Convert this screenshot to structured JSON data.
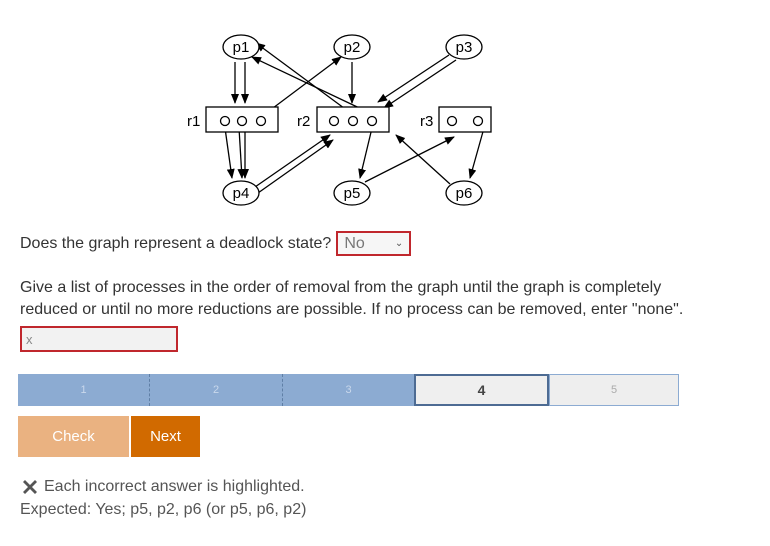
{
  "graph": {
    "processes": [
      "p1",
      "p2",
      "p3",
      "p4",
      "p5",
      "p6"
    ],
    "resources": [
      "r1",
      "r2",
      "r3"
    ]
  },
  "question1": {
    "text": "Does the graph represent a deadlock state?",
    "selected": "No"
  },
  "question2": {
    "text": "Give a list of processes in the order of removal from the graph until the graph is completely reduced or until no more reductions are possible. If no process can be removed, enter \"none\".",
    "value": "x"
  },
  "progress": {
    "steps": [
      "1",
      "2",
      "3",
      "4",
      "5"
    ],
    "current": 4
  },
  "buttons": {
    "check": "Check",
    "next": "Next"
  },
  "feedback": {
    "icon": "close-icon",
    "message": "Each incorrect answer is highlighted.",
    "expected": "Expected: Yes; p5, p2, p6 (or p5, p6, p2)"
  },
  "colors": {
    "error_border": "#c0272d",
    "progress_done": "#8cabd2",
    "check_button": "#eab281",
    "next_button": "#d16a00"
  }
}
